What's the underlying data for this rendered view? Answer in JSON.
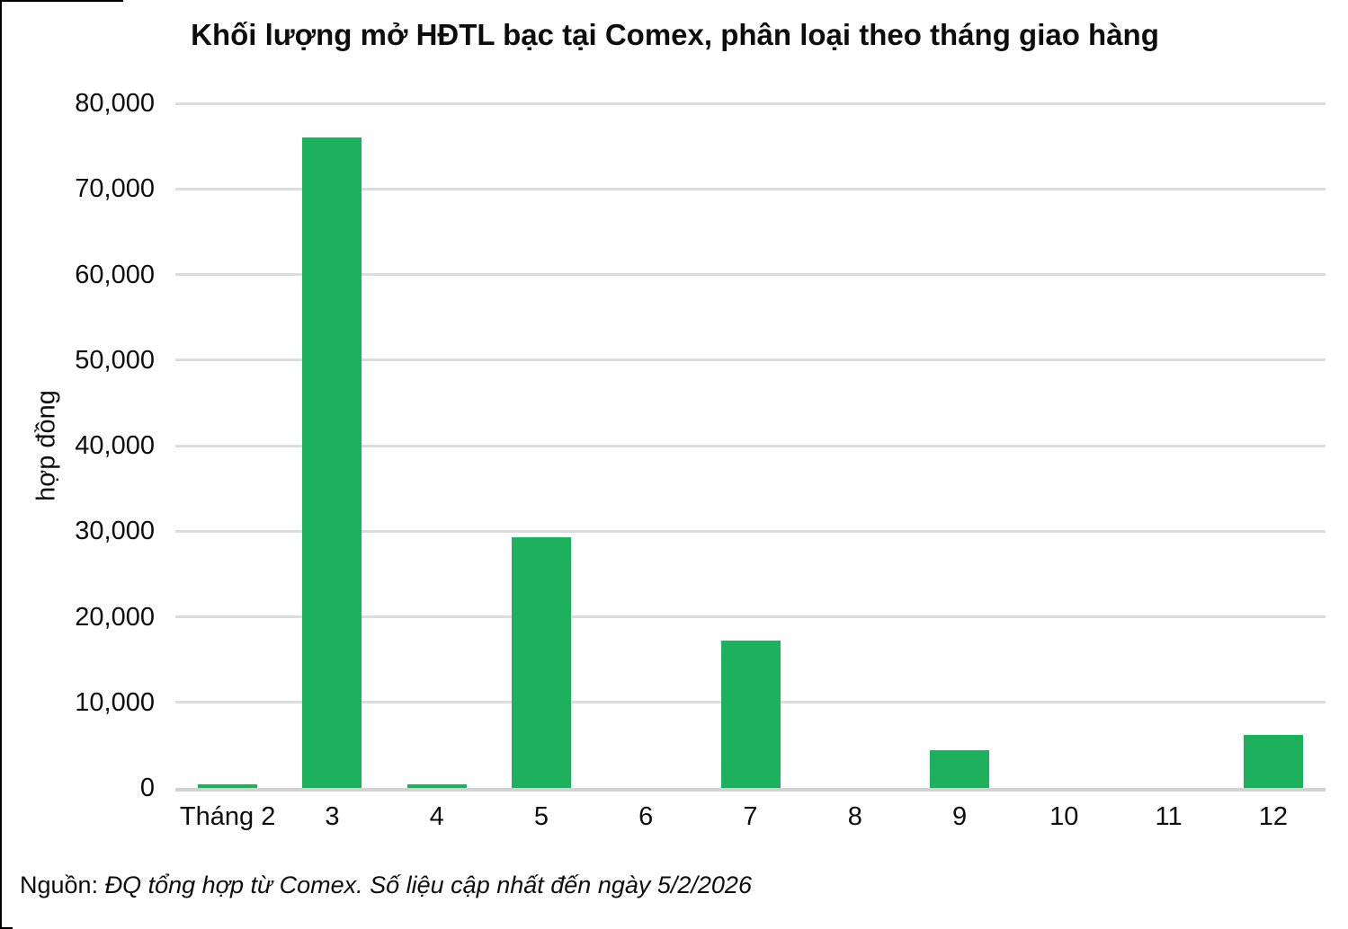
{
  "title": "Khối lượng mở HĐTL bạc tại Comex, phân loại theo tháng giao hàng",
  "source": {
    "prefix": "Nguồn: ",
    "text": "ĐQ tổng hợp từ Comex. Số liệu cập nhất đến ngày 5/2/2026"
  },
  "colors": {
    "bar": "#1db15e",
    "gridline": "#dcdcdc",
    "baseline": "#d2d2d2",
    "text": "#0d0d0d"
  },
  "chart_data": {
    "type": "bar",
    "title": "Khối lượng mở HĐTL bạc tại Comex, phân loại theo tháng giao hàng",
    "categories": [
      "Tháng 2",
      "3",
      "4",
      "5",
      "6",
      "7",
      "8",
      "9",
      "10",
      "11",
      "12"
    ],
    "values": [
      400,
      76000,
      400,
      29300,
      0,
      17200,
      0,
      4400,
      0,
      0,
      6200
    ],
    "xlabel": "",
    "ylabel": "hợp đồng",
    "ylim": [
      0,
      80000
    ],
    "ytick_interval": 10000,
    "ytick_labels": [
      "0",
      "10,000",
      "20,000",
      "30,000",
      "40,000",
      "50,000",
      "60,000",
      "70,000",
      "80,000"
    ],
    "grid": true,
    "legend_position": "none"
  }
}
